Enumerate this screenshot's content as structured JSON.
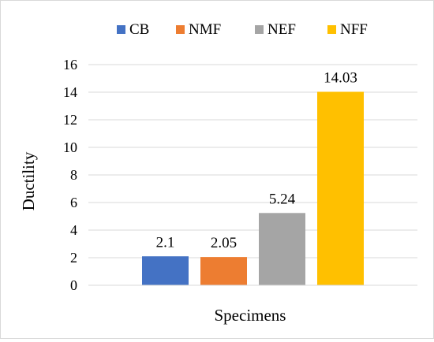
{
  "chart_data": {
    "type": "bar",
    "title": "",
    "xlabel": "Specimens",
    "ylabel": "Ductility",
    "ylim": [
      0,
      16
    ],
    "y_ticks": [
      "0",
      "2",
      "4",
      "6",
      "8",
      "10",
      "12",
      "14",
      "16"
    ],
    "grid": true,
    "legend_position": "top",
    "series": [
      {
        "name": "CB",
        "value": 2.1,
        "label": "2.1",
        "color": "#4472C4"
      },
      {
        "name": "NMF",
        "value": 2.05,
        "label": "2.05",
        "color": "#ED7D31"
      },
      {
        "name": "NEF",
        "value": 5.24,
        "label": "5.24",
        "color": "#A5A5A5"
      },
      {
        "name": "NFF",
        "value": 14.03,
        "label": "14.03",
        "color": "#FFC000"
      }
    ]
  },
  "colors": {
    "grid": "#d9d9d9",
    "axis": "#d9d9d9",
    "border": "#d9d9d9"
  }
}
